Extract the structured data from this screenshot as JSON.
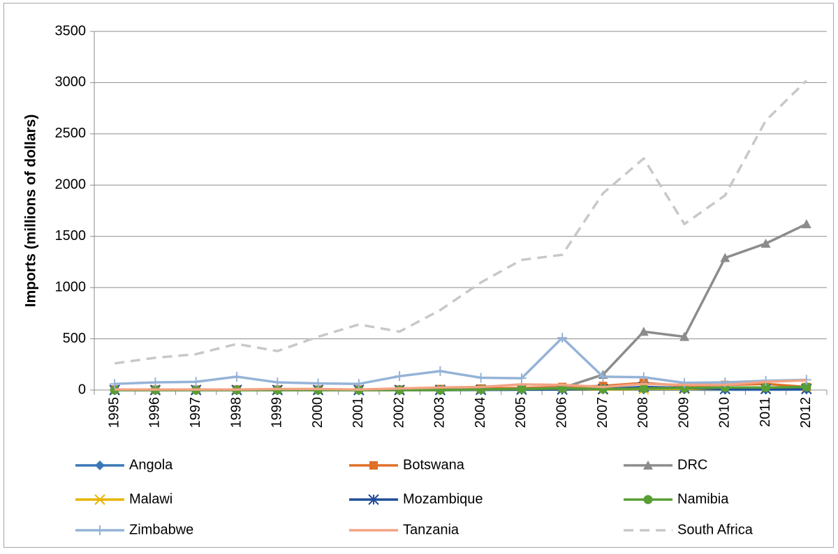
{
  "chart_data": {
    "type": "line",
    "y_label": "Imports (millions of dollars)",
    "categories": [
      "1995",
      "1996",
      "1997",
      "1998",
      "1999",
      "2000",
      "2001",
      "2002",
      "2003",
      "2004",
      "2005",
      "2006",
      "2007",
      "2008",
      "2009",
      "2010",
      "2011",
      "2012"
    ],
    "ylim": [
      0,
      3500
    ],
    "yticks": [
      0,
      500,
      1000,
      1500,
      2000,
      2500,
      3000,
      3500
    ],
    "grid": true,
    "legend": "bottom",
    "series": [
      {
        "name": "Angola",
        "color": "#3b78b8",
        "marker": "diamond",
        "dash": false,
        "values": [
          0,
          0,
          0,
          0,
          0,
          0,
          0,
          0,
          0,
          2,
          3,
          5,
          5,
          5,
          5,
          3,
          3,
          5
        ]
      },
      {
        "name": "Botswana",
        "color": "#e07028",
        "marker": "square",
        "dash": false,
        "values": [
          5,
          5,
          5,
          5,
          5,
          5,
          5,
          5,
          10,
          15,
          20,
          30,
          40,
          70,
          40,
          50,
          60,
          30
        ]
      },
      {
        "name": "DRC",
        "color": "#8c8c8c",
        "marker": "triangle",
        "dash": false,
        "values": [
          5,
          5,
          5,
          5,
          5,
          5,
          5,
          5,
          5,
          5,
          10,
          20,
          150,
          570,
          520,
          1290,
          1430,
          1620
        ]
      },
      {
        "name": "Malawi",
        "color": "#e8b400",
        "marker": "x",
        "dash": false,
        "values": [
          0,
          0,
          0,
          0,
          0,
          0,
          0,
          0,
          2,
          3,
          5,
          5,
          5,
          10,
          10,
          10,
          15,
          15
        ]
      },
      {
        "name": "Mozambique",
        "color": "#1f4e9a",
        "marker": "asterisk",
        "dash": false,
        "values": [
          0,
          0,
          0,
          0,
          0,
          0,
          0,
          0,
          0,
          2,
          5,
          5,
          10,
          30,
          20,
          10,
          10,
          10
        ]
      },
      {
        "name": "Namibia",
        "color": "#5a9e36",
        "marker": "circle",
        "dash": false,
        "values": [
          0,
          0,
          0,
          0,
          0,
          0,
          0,
          0,
          0,
          5,
          10,
          15,
          10,
          15,
          20,
          25,
          25,
          30
        ]
      },
      {
        "name": "Zimbabwe",
        "color": "#95b3d7",
        "marker": "plus",
        "dash": false,
        "values": [
          60,
          75,
          80,
          130,
          75,
          65,
          60,
          135,
          185,
          120,
          115,
          510,
          130,
          125,
          70,
          75,
          90,
          100
        ]
      },
      {
        "name": "Tanzania",
        "color": "#f2a383",
        "marker": "none",
        "dash": false,
        "values": [
          5,
          5,
          5,
          5,
          10,
          10,
          5,
          15,
          25,
          30,
          55,
          50,
          30,
          60,
          50,
          50,
          80,
          95
        ]
      },
      {
        "name": "South Africa",
        "color": "#c8c8c8",
        "marker": "none",
        "dash": true,
        "values": [
          260,
          315,
          350,
          450,
          380,
          520,
          640,
          570,
          780,
          1050,
          1270,
          1320,
          1920,
          2260,
          1620,
          1900,
          2630,
          3020
        ]
      }
    ]
  }
}
